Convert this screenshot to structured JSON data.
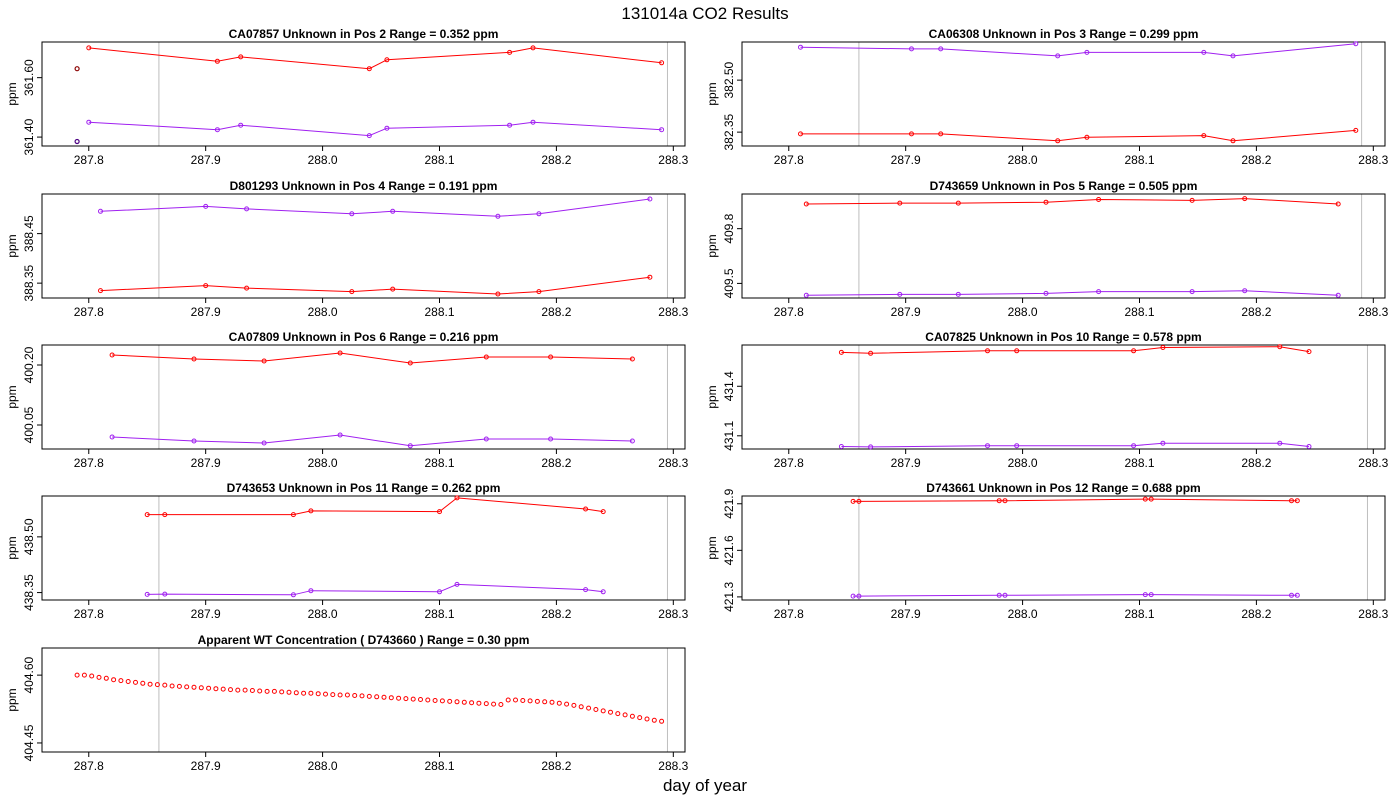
{
  "figure": {
    "title": "131014a  CO2 Results",
    "xlabel": "day of year",
    "colors": {
      "series_a": "#ff0000",
      "series_b": "#a020f0",
      "marker_line": "#bebebe",
      "axis": "#000000"
    }
  },
  "chart_data": [
    {
      "type": "line",
      "title": "CA07857    Unknown in Pos 2         Range =  0.352 ppm",
      "ylabel": "ppm",
      "xlim": [
        287.76,
        288.31
      ],
      "ylim": [
        361.37,
        361.72
      ],
      "xticks": [
        287.8,
        287.9,
        288.0,
        288.1,
        288.2,
        288.3
      ],
      "xtick_labels": [
        "287.8",
        "287.9",
        "288.0",
        "288.1",
        "288.2",
        "288.3"
      ],
      "yticks": [
        361.4,
        361.6
      ],
      "ytick_labels": [
        "361.40",
        "361.60"
      ],
      "vlines": [
        287.86,
        288.295
      ],
      "series": [
        {
          "name": "upper",
          "color": "#ff0000",
          "x": [
            287.8,
            287.91,
            287.93,
            288.04,
            288.055,
            288.16,
            288.18,
            288.29
          ],
          "y": [
            361.7,
            361.655,
            361.67,
            361.63,
            361.66,
            361.685,
            361.7,
            361.65
          ]
        },
        {
          "name": "lower",
          "color": "#a020f0",
          "x": [
            287.8,
            287.91,
            287.93,
            288.04,
            288.055,
            288.16,
            288.18,
            288.29
          ],
          "y": [
            361.45,
            361.425,
            361.44,
            361.405,
            361.43,
            361.44,
            361.45,
            361.425
          ]
        }
      ],
      "extra_points": [
        {
          "color": "#8b0000",
          "x": 287.79,
          "y": 361.63
        },
        {
          "color": "#4b0082",
          "x": 287.79,
          "y": 361.385
        }
      ]
    },
    {
      "type": "line",
      "title": "CA06308    Unknown in Pos 3         Range =  0.299 ppm",
      "ylabel": "ppm",
      "xlim": [
        287.76,
        288.31
      ],
      "ylim": [
        382.31,
        382.61
      ],
      "xticks": [
        287.8,
        287.9,
        288.0,
        288.1,
        288.2,
        288.3
      ],
      "xtick_labels": [
        "287.8",
        "287.9",
        "288.0",
        "288.1",
        "288.2",
        "288.3"
      ],
      "yticks": [
        382.35,
        382.5
      ],
      "ytick_labels": [
        "382.35",
        "382.50"
      ],
      "vlines": [
        287.86,
        288.29
      ],
      "series": [
        {
          "name": "upper",
          "color": "#a020f0",
          "x": [
            287.81,
            287.905,
            287.93,
            288.03,
            288.055,
            288.155,
            288.18,
            288.285
          ],
          "y": [
            382.595,
            382.59,
            382.59,
            382.57,
            382.58,
            382.58,
            382.57,
            382.605
          ]
        },
        {
          "name": "lower",
          "color": "#ff0000",
          "x": [
            287.81,
            287.905,
            287.93,
            288.03,
            288.055,
            288.155,
            288.18,
            288.285
          ],
          "y": [
            382.345,
            382.345,
            382.345,
            382.325,
            382.335,
            382.34,
            382.325,
            382.355
          ]
        }
      ]
    },
    {
      "type": "line",
      "title": "D801293    Unknown in Pos 4         Range =  0.191 ppm",
      "ylabel": "ppm",
      "xlim": [
        287.76,
        288.31
      ],
      "ylim": [
        388.32,
        388.53
      ],
      "xticks": [
        287.8,
        287.9,
        288.0,
        288.1,
        288.2,
        288.3
      ],
      "xtick_labels": [
        "287.8",
        "287.9",
        "288.0",
        "288.1",
        "288.2",
        "288.3"
      ],
      "yticks": [
        388.35,
        388.45
      ],
      "ytick_labels": [
        "388.35",
        "388.45"
      ],
      "vlines": [
        287.86,
        288.295
      ],
      "series": [
        {
          "name": "upper",
          "color": "#a020f0",
          "x": [
            287.81,
            287.9,
            287.935,
            288.025,
            288.06,
            288.15,
            288.185,
            288.28
          ],
          "y": [
            388.495,
            388.505,
            388.5,
            388.49,
            388.495,
            388.485,
            388.49,
            388.52
          ]
        },
        {
          "name": "lower",
          "color": "#ff0000",
          "x": [
            287.81,
            287.9,
            287.935,
            288.025,
            288.06,
            288.15,
            288.185,
            288.28
          ],
          "y": [
            388.335,
            388.345,
            388.34,
            388.333,
            388.338,
            388.328,
            388.333,
            388.362
          ]
        }
      ]
    },
    {
      "type": "line",
      "title": "D743659    Unknown in Pos 5         Range =  0.505 ppm",
      "ylabel": "ppm",
      "xlim": [
        287.76,
        288.31
      ],
      "ylim": [
        409.42,
        409.99
      ],
      "xticks": [
        287.8,
        287.9,
        288.0,
        288.1,
        288.2,
        288.3
      ],
      "xtick_labels": [
        "287.8",
        "287.9",
        "288.0",
        "288.1",
        "288.2",
        "288.3"
      ],
      "yticks": [
        409.5,
        409.8
      ],
      "ytick_labels": [
        "409.5",
        "409.8"
      ],
      "vlines": [
        287.86,
        288.29
      ],
      "series": [
        {
          "name": "upper",
          "color": "#ff0000",
          "x": [
            287.815,
            287.895,
            287.945,
            288.02,
            288.065,
            288.145,
            288.19,
            288.27
          ],
          "y": [
            409.935,
            409.94,
            409.94,
            409.945,
            409.96,
            409.955,
            409.965,
            409.935
          ]
        },
        {
          "name": "lower",
          "color": "#a020f0",
          "x": [
            287.815,
            287.895,
            287.945,
            288.02,
            288.065,
            288.145,
            288.19,
            288.27
          ],
          "y": [
            409.435,
            409.44,
            409.44,
            409.445,
            409.455,
            409.455,
            409.46,
            409.435
          ]
        }
      ]
    },
    {
      "type": "line",
      "title": "CA07809    Unknown in Pos 6         Range =  0.216 ppm",
      "ylabel": "ppm",
      "xlim": [
        287.76,
        288.31
      ],
      "ylim": [
        399.99,
        400.25
      ],
      "xticks": [
        287.8,
        287.9,
        288.0,
        288.1,
        288.2,
        288.3
      ],
      "xtick_labels": [
        "287.8",
        "287.9",
        "288.0",
        "288.1",
        "288.2",
        "288.3"
      ],
      "yticks": [
        400.05,
        400.2
      ],
      "ytick_labels": [
        "400.05",
        "400.20"
      ],
      "vlines": [
        287.86,
        288.295
      ],
      "series": [
        {
          "name": "upper",
          "color": "#ff0000",
          "x": [
            287.82,
            287.89,
            287.95,
            288.015,
            288.075,
            288.14,
            288.195,
            288.265
          ],
          "y": [
            400.225,
            400.215,
            400.21,
            400.23,
            400.205,
            400.22,
            400.22,
            400.215
          ]
        },
        {
          "name": "lower",
          "color": "#a020f0",
          "x": [
            287.82,
            287.89,
            287.95,
            288.015,
            288.075,
            288.14,
            288.195,
            288.265
          ],
          "y": [
            400.02,
            400.01,
            400.005,
            400.025,
            399.998,
            400.015,
            400.015,
            400.01
          ]
        }
      ]
    },
    {
      "type": "line",
      "title": "CA07825    Unknown in Pos 10         Range =  0.578 ppm",
      "ylabel": "ppm",
      "xlim": [
        287.76,
        288.31
      ],
      "ylim": [
        431.02,
        431.65
      ],
      "xticks": [
        287.8,
        287.9,
        288.0,
        288.1,
        288.2,
        288.3
      ],
      "xtick_labels": [
        "287.8",
        "287.9",
        "288.0",
        "288.1",
        "288.2",
        "288.3"
      ],
      "yticks": [
        431.1,
        431.4
      ],
      "ytick_labels": [
        "431.1",
        "431.4"
      ],
      "vlines": [
        287.86,
        288.295
      ],
      "series": [
        {
          "name": "upper",
          "color": "#ff0000",
          "x": [
            287.845,
            287.87,
            287.97,
            287.995,
            288.095,
            288.12,
            288.22,
            288.245
          ],
          "y": [
            431.605,
            431.6,
            431.615,
            431.615,
            431.615,
            431.635,
            431.64,
            431.61
          ]
        },
        {
          "name": "lower",
          "color": "#a020f0",
          "x": [
            287.845,
            287.87,
            287.97,
            287.995,
            288.095,
            288.12,
            288.22,
            288.245
          ],
          "y": [
            431.035,
            431.033,
            431.04,
            431.04,
            431.04,
            431.055,
            431.055,
            431.035
          ]
        }
      ]
    },
    {
      "type": "line",
      "title": "D743653    Unknown in Pos 11         Range =  0.262 ppm",
      "ylabel": "ppm",
      "xlim": [
        287.76,
        288.31
      ],
      "ylim": [
        438.33,
        438.61
      ],
      "xticks": [
        287.8,
        287.9,
        288.0,
        288.1,
        288.2,
        288.3
      ],
      "xtick_labels": [
        "287.8",
        "287.9",
        "288.0",
        "288.1",
        "288.2",
        "288.3"
      ],
      "yticks": [
        438.35,
        438.5
      ],
      "ytick_labels": [
        "438.35",
        "438.50"
      ],
      "vlines": [
        287.86,
        288.295
      ],
      "series": [
        {
          "name": "upper",
          "color": "#ff0000",
          "x": [
            287.85,
            287.865,
            287.975,
            287.99,
            288.1,
            288.115,
            288.225,
            288.24
          ],
          "y": [
            438.56,
            438.56,
            438.56,
            438.57,
            438.568,
            438.605,
            438.575,
            438.568
          ]
        },
        {
          "name": "lower",
          "color": "#a020f0",
          "x": [
            287.85,
            287.865,
            287.975,
            287.99,
            288.1,
            288.115,
            288.225,
            288.24
          ],
          "y": [
            438.345,
            438.346,
            438.344,
            438.355,
            438.352,
            438.372,
            438.358,
            438.352
          ]
        }
      ]
    },
    {
      "type": "line",
      "title": "D743661    Unknown in Pos 12         Range =  0.688 ppm",
      "ylabel": "ppm",
      "xlim": [
        287.76,
        288.31
      ],
      "ylim": [
        421.28,
        421.95
      ],
      "xticks": [
        287.8,
        287.9,
        288.0,
        288.1,
        288.2,
        288.3
      ],
      "xtick_labels": [
        "287.8",
        "287.9",
        "288.0",
        "288.1",
        "288.2",
        "288.3"
      ],
      "yticks": [
        421.3,
        421.6,
        421.9
      ],
      "ytick_labels": [
        "421.3",
        "421.6",
        "421.9"
      ],
      "vlines": [
        287.86,
        288.295
      ],
      "series": [
        {
          "name": "upper",
          "color": "#ff0000",
          "x": [
            287.855,
            287.86,
            287.98,
            287.985,
            288.105,
            288.11,
            288.23,
            288.235
          ],
          "y": [
            421.915,
            421.915,
            421.92,
            421.92,
            421.93,
            421.93,
            421.92,
            421.92
          ]
        },
        {
          "name": "lower",
          "color": "#a020f0",
          "x": [
            287.855,
            287.86,
            287.98,
            287.985,
            288.105,
            288.11,
            288.23,
            288.235
          ],
          "y": [
            421.305,
            421.305,
            421.31,
            421.31,
            421.315,
            421.315,
            421.31,
            421.31
          ]
        }
      ]
    },
    {
      "type": "scatter",
      "title": "Apparent WT Concentration ( D743660 )          Range = 0.30 ppm",
      "ylabel": "ppm",
      "xlim": [
        287.76,
        288.31
      ],
      "ylim": [
        404.43,
        404.66
      ],
      "xticks": [
        287.8,
        287.9,
        288.0,
        288.1,
        288.2,
        288.3
      ],
      "xtick_labels": [
        "287.8",
        "287.9",
        "288.0",
        "288.1",
        "288.2",
        "288.3"
      ],
      "yticks": [
        404.45,
        404.6
      ],
      "ytick_labels": [
        "404.45",
        "404.60"
      ],
      "vlines": [
        287.86,
        288.295
      ],
      "series": [
        {
          "name": "wt",
          "color": "#ff0000",
          "x_start": 287.79,
          "x_step": 0.00625,
          "count": 81,
          "y": [
            404.6,
            404.6,
            404.598,
            404.595,
            404.593,
            404.59,
            404.588,
            404.586,
            404.584,
            404.582,
            404.58,
            404.579,
            404.578,
            404.576,
            404.575,
            404.574,
            404.573,
            404.572,
            404.571,
            404.57,
            404.569,
            404.568,
            404.567,
            404.567,
            404.566,
            404.565,
            404.564,
            404.564,
            404.563,
            404.562,
            404.561,
            404.56,
            404.56,
            404.559,
            404.558,
            404.557,
            404.556,
            404.556,
            404.555,
            404.554,
            404.553,
            404.552,
            404.551,
            404.55,
            404.549,
            404.548,
            404.547,
            404.546,
            404.545,
            404.544,
            404.543,
            404.542,
            404.541,
            404.54,
            404.539,
            404.538,
            404.537,
            404.536,
            404.535,
            404.545,
            404.545,
            404.544,
            404.543,
            404.542,
            404.541,
            404.54,
            404.538,
            404.536,
            404.533,
            404.53,
            404.527,
            404.524,
            404.521,
            404.518,
            404.515,
            404.512,
            404.509,
            404.506,
            404.503,
            404.5,
            404.498
          ]
        }
      ]
    }
  ]
}
